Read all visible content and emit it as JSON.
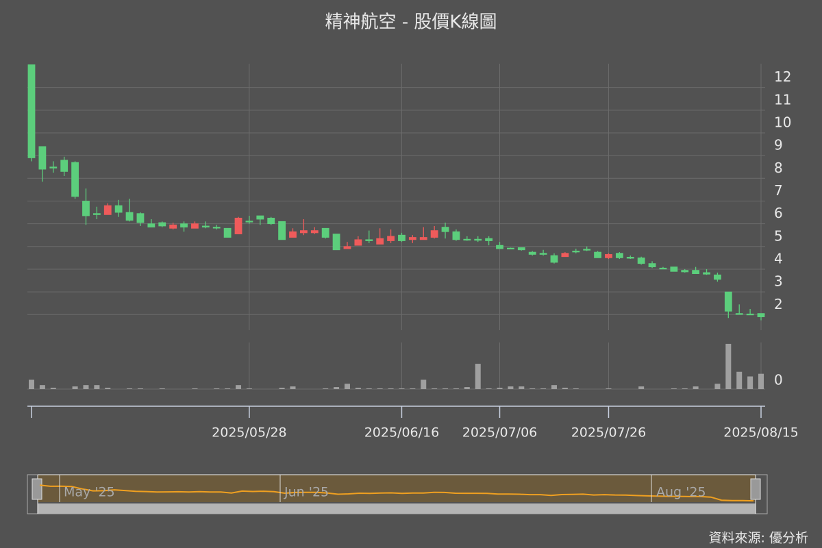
{
  "chart_data": {
    "type": "candlestick",
    "title": "精神航空 - 股價K線圖",
    "categories": [
      null,
      null,
      null,
      null,
      null,
      null,
      null,
      null,
      null,
      null,
      null,
      null,
      null,
      null,
      null,
      null,
      null,
      null,
      null,
      null,
      "2025/05/28",
      null,
      null,
      null,
      null,
      null,
      null,
      null,
      null,
      null,
      null,
      null,
      null,
      null,
      "2025/06/16",
      null,
      null,
      null,
      null,
      null,
      null,
      null,
      null,
      "2025/07/06",
      null,
      null,
      null,
      null,
      null,
      null,
      null,
      null,
      null,
      "2025/07/26",
      null,
      null,
      null,
      null,
      null,
      null,
      null,
      null,
      null,
      null,
      null,
      null,
      null,
      "2025/08/15"
    ],
    "open": [
      13.0,
      9.4,
      8.5,
      8.8,
      8.7,
      7.0,
      6.45,
      6.4,
      6.8,
      6.5,
      6.45,
      6.0,
      6.05,
      5.8,
      6.0,
      5.8,
      5.9,
      5.85,
      5.8,
      5.55,
      6.12,
      6.35,
      6.25,
      6.1,
      5.4,
      5.6,
      5.6,
      5.8,
      5.55,
      4.9,
      5.05,
      5.3,
      5.1,
      5.25,
      5.5,
      5.3,
      5.3,
      5.4,
      5.85,
      5.65,
      5.32,
      5.32,
      5.35,
      5.05,
      4.93,
      4.95,
      4.75,
      4.7,
      4.6,
      4.55,
      4.8,
      4.88,
      4.75,
      4.5,
      4.7,
      4.53,
      4.5,
      4.25,
      4.05,
      4.1,
      3.95,
      3.95,
      3.85,
      3.75,
      3.0,
      2.05,
      2.03,
      2.05
    ],
    "high": [
      13.0,
      9.4,
      8.75,
      8.95,
      8.75,
      7.55,
      6.75,
      6.9,
      7.05,
      7.1,
      6.5,
      6.2,
      6.1,
      6.05,
      6.1,
      6.1,
      6.1,
      5.95,
      5.8,
      6.3,
      6.35,
      6.35,
      6.3,
      6.1,
      5.8,
      6.2,
      5.85,
      5.8,
      5.55,
      5.2,
      5.45,
      5.7,
      5.8,
      5.75,
      5.6,
      5.5,
      5.85,
      5.9,
      6.05,
      5.75,
      5.45,
      5.45,
      5.45,
      5.2,
      4.95,
      4.95,
      4.8,
      4.85,
      4.7,
      4.75,
      4.9,
      5.0,
      4.8,
      4.7,
      4.75,
      4.6,
      4.55,
      4.35,
      4.1,
      4.1,
      4.0,
      4.1,
      4.0,
      3.85,
      3.0,
      2.45,
      2.25,
      2.05
    ],
    "low": [
      8.75,
      7.85,
      8.25,
      8.1,
      7.1,
      5.95,
      6.2,
      6.4,
      6.3,
      6.1,
      5.9,
      5.85,
      5.85,
      5.75,
      5.65,
      5.8,
      5.8,
      5.75,
      5.4,
      5.55,
      6.0,
      5.95,
      5.95,
      5.3,
      5.4,
      5.5,
      5.55,
      5.35,
      4.85,
      4.9,
      5.05,
      5.15,
      5.1,
      5.15,
      5.2,
      5.15,
      5.3,
      5.35,
      5.35,
      5.25,
      5.25,
      5.2,
      5.05,
      4.9,
      4.88,
      4.82,
      4.6,
      4.6,
      4.25,
      4.55,
      4.7,
      4.8,
      4.5,
      4.45,
      4.45,
      4.45,
      4.2,
      4.05,
      4.0,
      3.9,
      3.85,
      3.8,
      3.75,
      3.45,
      1.85,
      2.0,
      1.98,
      1.75
    ],
    "close": [
      8.9,
      8.4,
      8.45,
      8.3,
      7.2,
      6.35,
      6.4,
      6.8,
      6.5,
      6.15,
      6.05,
      5.85,
      5.9,
      5.95,
      5.85,
      6.0,
      5.85,
      5.83,
      5.4,
      6.25,
      6.08,
      6.2,
      6.0,
      5.3,
      5.65,
      5.7,
      5.7,
      5.4,
      4.85,
      5.0,
      5.3,
      5.25,
      5.35,
      5.45,
      5.25,
      5.4,
      5.4,
      5.7,
      5.65,
      5.3,
      5.28,
      5.27,
      5.25,
      4.9,
      4.9,
      4.85,
      4.65,
      4.65,
      4.3,
      4.7,
      4.78,
      4.86,
      4.5,
      4.65,
      4.5,
      4.48,
      4.25,
      4.1,
      4.02,
      3.9,
      3.88,
      3.8,
      3.78,
      3.55,
      2.15,
      2.02,
      2.0,
      1.9
    ],
    "volume": [
      14,
      6,
      2,
      0,
      4,
      6,
      6,
      2,
      0,
      1,
      1,
      0,
      1,
      0,
      0,
      1,
      0,
      1,
      1,
      6,
      1,
      0,
      0,
      2,
      4,
      0,
      0,
      1,
      3,
      8,
      2,
      1,
      1,
      1,
      1,
      1,
      14,
      1,
      1,
      1,
      3,
      38,
      1,
      2,
      4,
      4,
      1,
      1,
      6,
      2,
      1,
      0,
      0,
      1,
      0,
      0,
      4,
      0,
      0,
      1,
      1,
      4,
      0,
      8,
      68,
      26,
      19,
      23
    ],
    "up_color": "#ef5b5b",
    "down_color": "#5cce7c",
    "volume_color": "#a0a0a0",
    "ylim": [
      1.3,
      13.0
    ],
    "yticks": [
      2,
      3,
      4,
      5,
      6,
      7,
      8,
      9,
      10,
      11,
      12
    ],
    "volume_ylim": [
      0,
      70
    ],
    "volume_yticks": [
      0
    ],
    "grid": true,
    "rangeslider_labels": [
      "May '25",
      "Jun '25",
      "Aug '25"
    ],
    "source": "資料來源: 優分析"
  }
}
